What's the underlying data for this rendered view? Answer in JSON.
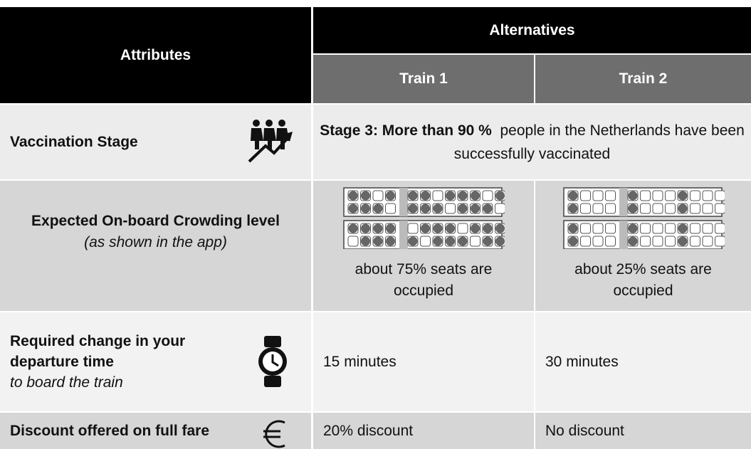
{
  "header": {
    "attributes": "Attributes",
    "alternatives": "Alternatives",
    "train_1": "Train 1",
    "train_2": "Train 2"
  },
  "rows": [
    {
      "attribute": "Vaccination Stage",
      "value_bold": "Stage 3: More than 90 %",
      "value_rest": "people in the Netherlands have been successfully vaccinated"
    },
    {
      "attribute": "Expected On-board Crowding level",
      "note": "(as shown in the app)",
      "train_1": "about 75% seats are occupied",
      "train_2": "about 25% seats are occupied"
    },
    {
      "attribute": "Required change in your departure time",
      "note": "to board the train",
      "train_1": "15 minutes",
      "train_2": "30 minutes"
    },
    {
      "attribute": "Discount offered on full fare",
      "train_1": "20% discount",
      "train_2": "No discount"
    }
  ]
}
